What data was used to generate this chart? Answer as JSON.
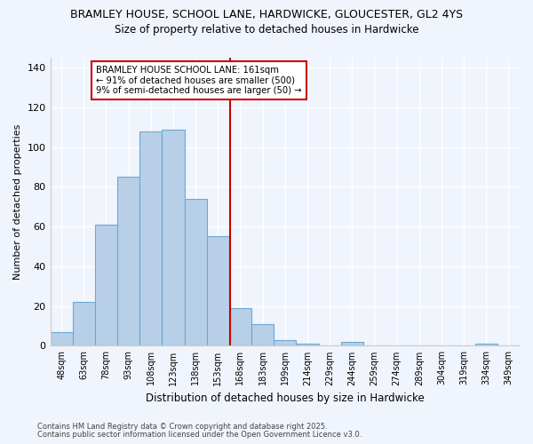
{
  "title1": "BRAMLEY HOUSE, SCHOOL LANE, HARDWICKE, GLOUCESTER, GL2 4YS",
  "title2": "Size of property relative to detached houses in Hardwicke",
  "xlabel": "Distribution of detached houses by size in Hardwicke",
  "ylabel": "Number of detached properties",
  "categories": [
    "48sqm",
    "63sqm",
    "78sqm",
    "93sqm",
    "108sqm",
    "123sqm",
    "138sqm",
    "153sqm",
    "168sqm",
    "183sqm",
    "199sqm",
    "214sqm",
    "229sqm",
    "244sqm",
    "259sqm",
    "274sqm",
    "289sqm",
    "304sqm",
    "319sqm",
    "334sqm",
    "349sqm"
  ],
  "values": [
    7,
    22,
    61,
    85,
    108,
    109,
    74,
    55,
    19,
    11,
    3,
    1,
    0,
    2,
    0,
    0,
    0,
    0,
    0,
    1,
    0
  ],
  "bar_color": "#b8cfe8",
  "bar_edge_color": "#6aaad4",
  "bg_color": "#f0f4fc",
  "grid_color": "#ffffff",
  "marker_line_color": "#cc0000",
  "annotation_line1": "BRAMLEY HOUSE SCHOOL LANE: 161sqm",
  "annotation_line2": "← 91% of detached houses are smaller (500)",
  "annotation_line3": "9% of semi-detached houses are larger (50) →",
  "ylim": [
    0,
    145
  ],
  "yticks": [
    0,
    20,
    40,
    60,
    80,
    100,
    120,
    140
  ],
  "footnote1": "Contains HM Land Registry data © Crown copyright and database right 2025.",
  "footnote2": "Contains public sector information licensed under the Open Government Licence v3.0."
}
